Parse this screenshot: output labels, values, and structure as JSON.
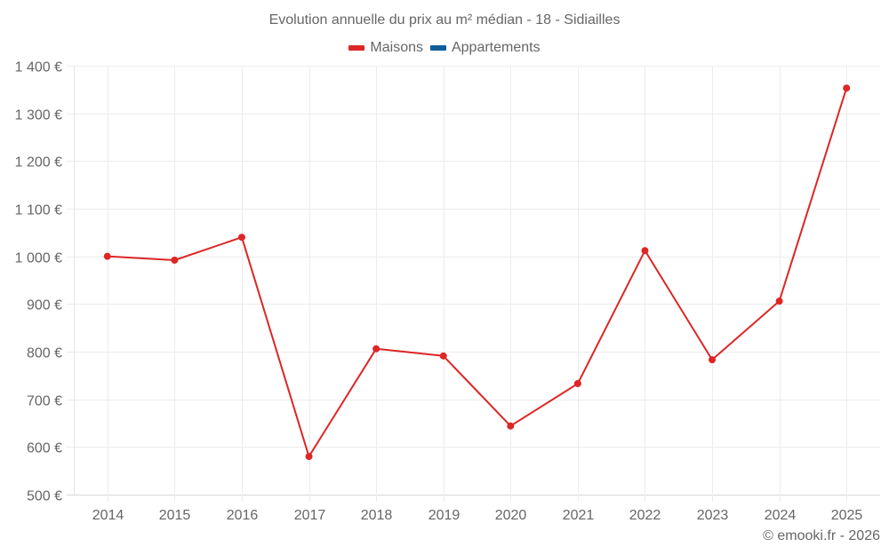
{
  "chart_data": {
    "type": "line",
    "title": "Evolution annuelle du prix au m² médian - 18 - Sidiailles",
    "xlabel": "",
    "ylabel": "",
    "categories": [
      "2014",
      "2015",
      "2016",
      "2017",
      "2018",
      "2019",
      "2020",
      "2021",
      "2022",
      "2023",
      "2024",
      "2025"
    ],
    "series": [
      {
        "name": "Maisons",
        "color": "#dd2626",
        "values": [
          1000,
          992,
          1040,
          580,
          806,
          791,
          644,
          733,
          1012,
          783,
          906,
          1353
        ]
      },
      {
        "name": "Appartements",
        "color": "#0d5e9a",
        "values": []
      }
    ],
    "ylim": [
      500,
      1400
    ],
    "yticks": [
      "1 400 €",
      "1 300 €",
      "1 200 €",
      "1 100 €",
      "1 000 €",
      "900 €",
      "800 €",
      "700 €",
      "600 €",
      "500 €"
    ],
    "grid": true,
    "legend_position": "top"
  },
  "legend": [
    {
      "label": "Maisons",
      "color": "#dd2626"
    },
    {
      "label": "Appartements",
      "color": "#0d5e9a"
    }
  ],
  "credit": "© emooki.fr - 2026"
}
